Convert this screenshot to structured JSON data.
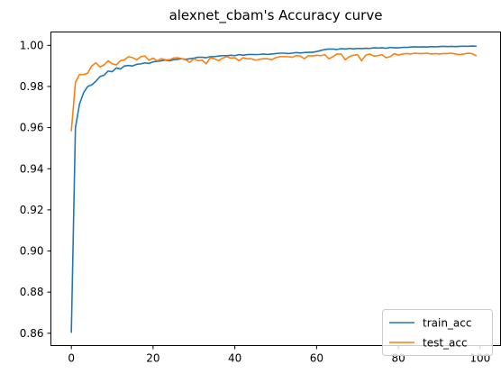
{
  "chart_data": {
    "type": "line",
    "title": "alexnet_cbam's Accuracy curve",
    "xlabel": "",
    "ylabel": "",
    "xlim": [
      -5,
      105
    ],
    "ylim": [
      0.854,
      1.0065
    ],
    "x_ticks": [
      0,
      20,
      40,
      60,
      80,
      100
    ],
    "x_tick_labels": [
      "0",
      "20",
      "40",
      "60",
      "80",
      "100"
    ],
    "y_ticks": [
      0.86,
      0.88,
      0.9,
      0.92,
      0.94,
      0.96,
      0.98,
      1.0
    ],
    "y_tick_labels": [
      "0.86",
      "0.88",
      "0.90",
      "0.92",
      "0.94",
      "0.96",
      "0.98",
      "1.00"
    ],
    "grid": false,
    "legend_position": "lower right",
    "series": [
      {
        "name": "train_acc",
        "color": "#1f77b4",
        "values": [
          0.8605,
          0.96,
          0.9715,
          0.977,
          0.98,
          0.9808,
          0.9825,
          0.9848,
          0.9855,
          0.9875,
          0.9872,
          0.989,
          0.9885,
          0.99,
          0.9902,
          0.99,
          0.9908,
          0.991,
          0.9915,
          0.9912,
          0.992,
          0.9922,
          0.9925,
          0.9928,
          0.9925,
          0.993,
          0.9932,
          0.9935,
          0.9932,
          0.9935,
          0.9938,
          0.9942,
          0.9942,
          0.994,
          0.9945,
          0.9945,
          0.9948,
          0.995,
          0.995,
          0.9952,
          0.995,
          0.9955,
          0.9952,
          0.9955,
          0.9956,
          0.9955,
          0.9956,
          0.9958,
          0.9956,
          0.9958,
          0.996,
          0.9962,
          0.9962,
          0.996,
          0.9962,
          0.9965,
          0.9963,
          0.9965,
          0.9966,
          0.9966,
          0.997,
          0.9975,
          0.998,
          0.9982,
          0.9982,
          0.998,
          0.9984,
          0.9982,
          0.9985,
          0.9983,
          0.9985,
          0.9984,
          0.9986,
          0.9985,
          0.9988,
          0.9987,
          0.9988,
          0.9986,
          0.999,
          0.9988,
          0.9988,
          0.999,
          0.999,
          0.9992,
          0.9993,
          0.9992,
          0.9993,
          0.9992,
          0.9994,
          0.9993,
          0.9994,
          0.9995,
          0.9994,
          0.9995,
          0.9994,
          0.9995,
          0.9996,
          0.9995,
          0.9997,
          0.9996
        ]
      },
      {
        "name": "test_acc",
        "color": "#ff7f0e",
        "values": [
          0.9585,
          0.982,
          0.9858,
          0.9858,
          0.9865,
          0.99,
          0.9915,
          0.9895,
          0.9905,
          0.9925,
          0.991,
          0.9905,
          0.9925,
          0.993,
          0.9945,
          0.994,
          0.993,
          0.9945,
          0.9948,
          0.9928,
          0.9938,
          0.9925,
          0.9935,
          0.993,
          0.993,
          0.9938,
          0.994,
          0.9935,
          0.993,
          0.9918,
          0.9935,
          0.9925,
          0.9928,
          0.991,
          0.994,
          0.9935,
          0.9925,
          0.9938,
          0.9945,
          0.9938,
          0.994,
          0.9925,
          0.994,
          0.9935,
          0.9935,
          0.9928,
          0.9932,
          0.9935,
          0.9935,
          0.993,
          0.994,
          0.9945,
          0.9945,
          0.9945,
          0.9942,
          0.995,
          0.9948,
          0.9935,
          0.995,
          0.9948,
          0.9952,
          0.995,
          0.9955,
          0.9935,
          0.9945,
          0.9958,
          0.9958,
          0.993,
          0.9945,
          0.9952,
          0.9955,
          0.9925,
          0.9952,
          0.9958,
          0.9948,
          0.995,
          0.9955,
          0.994,
          0.9945,
          0.996,
          0.9952,
          0.9958,
          0.996,
          0.9958,
          0.9962,
          0.996,
          0.996,
          0.9962,
          0.9958,
          0.996,
          0.9958,
          0.996,
          0.996,
          0.9962,
          0.9958,
          0.9955,
          0.9958,
          0.9962,
          0.996,
          0.995
        ]
      }
    ]
  }
}
